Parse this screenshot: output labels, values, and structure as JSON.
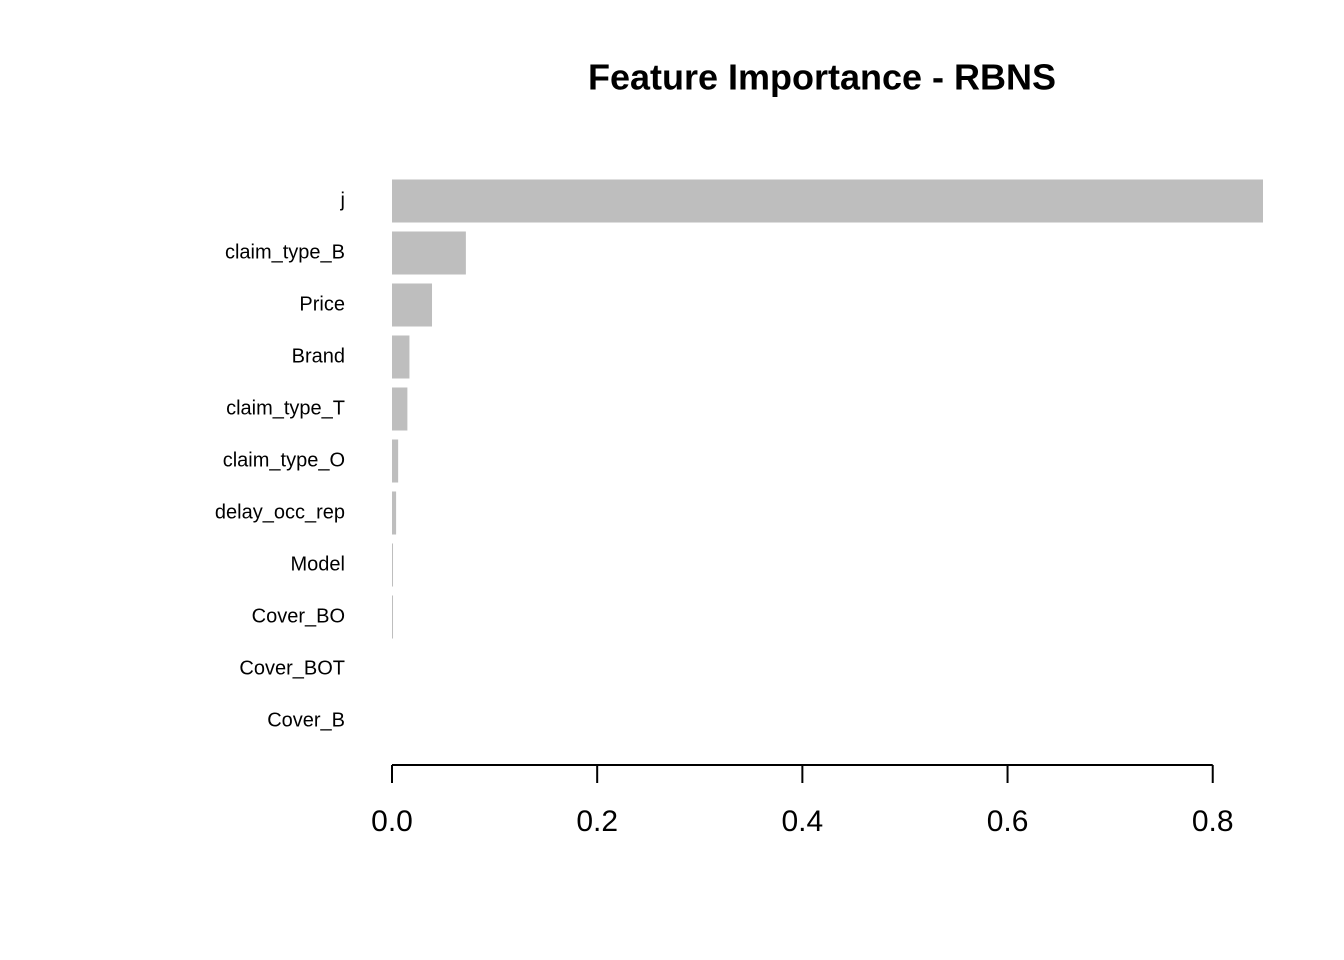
{
  "chart_data": {
    "type": "barh",
    "title": "Feature Importance - RBNS",
    "categories": [
      "j",
      "claim_type_B",
      "Price",
      "Brand",
      "claim_type_T",
      "claim_type_O",
      "delay_occ_rep",
      "Model",
      "Cover_BO",
      "Cover_BOT",
      "Cover_B"
    ],
    "values": [
      0.849,
      0.072,
      0.039,
      0.017,
      0.015,
      0.006,
      0.004,
      0.001,
      0.001,
      0,
      0
    ],
    "color": "#bebebe",
    "xlim": [
      0,
      0.849
    ],
    "xticks": [
      {
        "value": 0,
        "label": "0.0"
      },
      0.2,
      0.4,
      0.6,
      0.8
    ],
    "grid": false
  }
}
